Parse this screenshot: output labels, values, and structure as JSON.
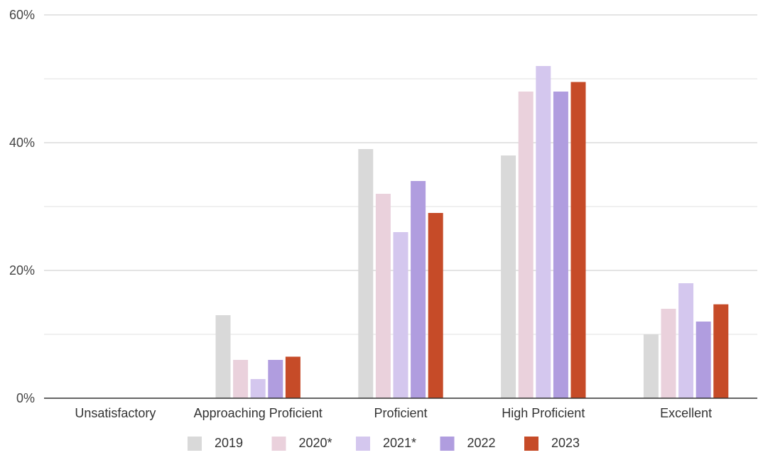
{
  "chart_data": {
    "type": "bar",
    "categories": [
      "Unsatisfactory",
      "Approaching Proficient",
      "Proficient",
      "High Proficient",
      "Excellent"
    ],
    "series": [
      {
        "name": "2019",
        "color": "#d9d9d9",
        "values": [
          0,
          13,
          39,
          38,
          10
        ]
      },
      {
        "name": "2020*",
        "color": "#ead1dc",
        "values": [
          0,
          6,
          32,
          48,
          14
        ]
      },
      {
        "name": "2021*",
        "color": "#d4c7ee",
        "values": [
          0,
          3,
          26,
          52,
          18
        ]
      },
      {
        "name": "2022",
        "color": "#b09ddf",
        "values": [
          0,
          6,
          34,
          48,
          12
        ]
      },
      {
        "name": "2023",
        "color": "#c64b28",
        "values": [
          0,
          6.5,
          29,
          49.5,
          14.7
        ]
      }
    ],
    "yticks": [
      {
        "value": 0,
        "label": "0%"
      },
      {
        "value": 20,
        "label": "20%"
      },
      {
        "value": 40,
        "label": "40%"
      },
      {
        "value": 60,
        "label": "60%"
      }
    ],
    "ylim": [
      0,
      60
    ],
    "minor_grid_step": 10,
    "grid": true,
    "legend_position": "bottom"
  }
}
